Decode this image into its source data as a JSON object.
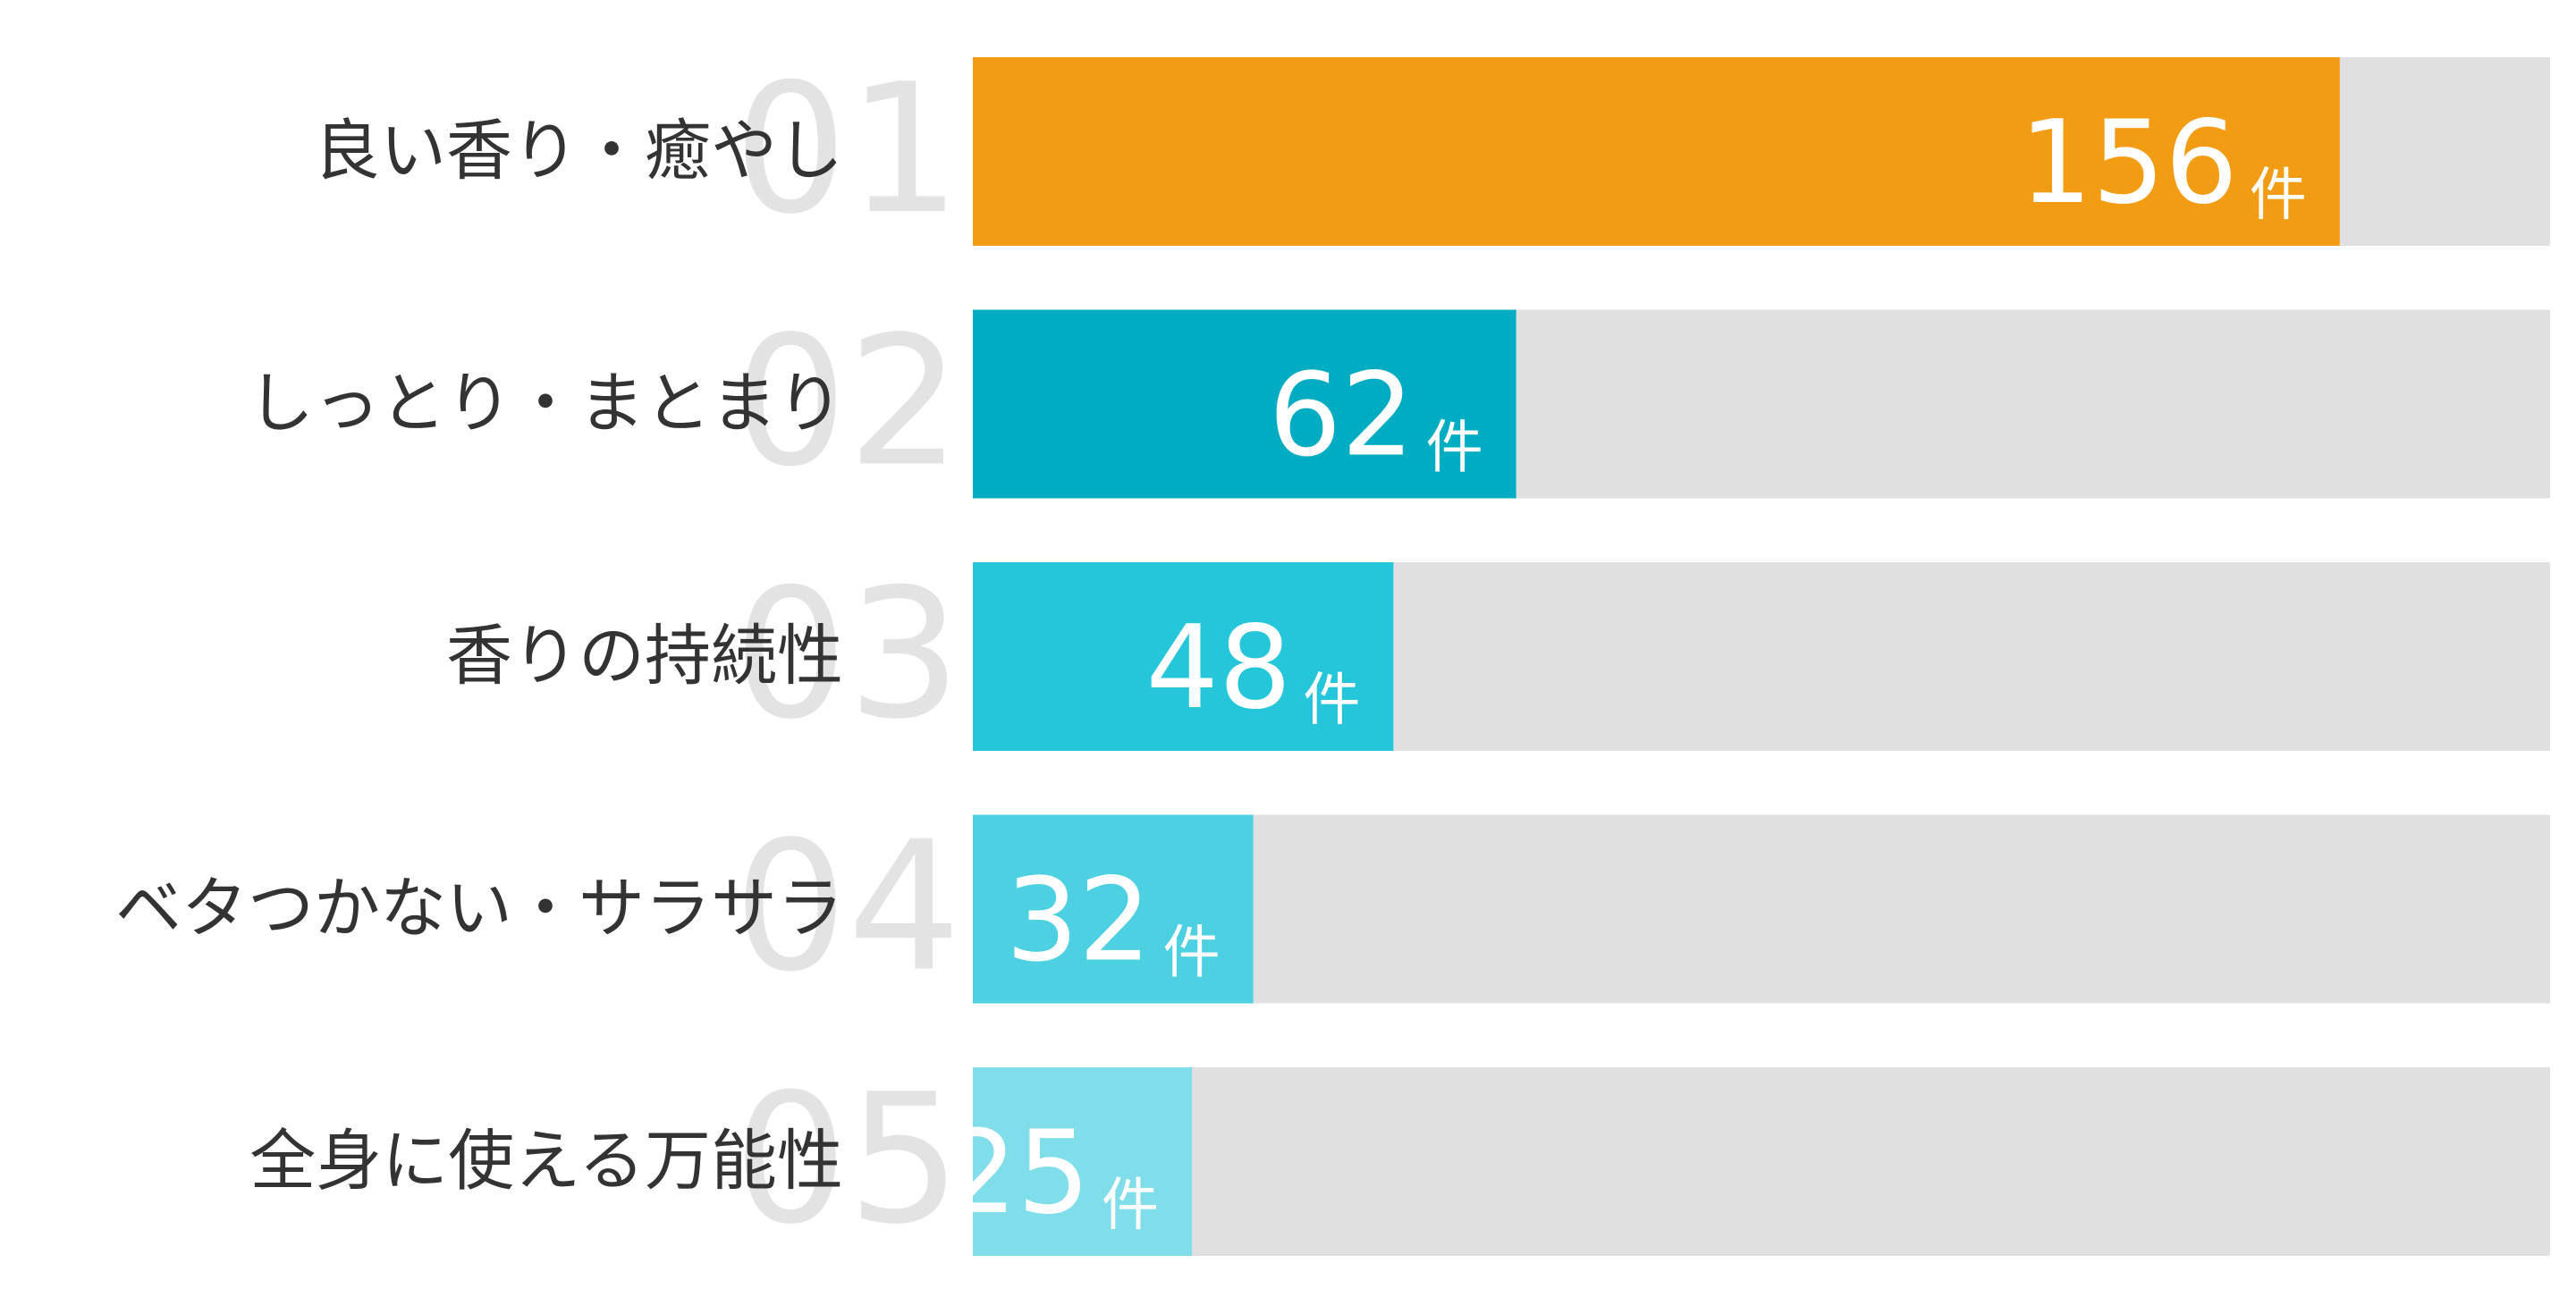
{
  "chart_data": {
    "type": "bar",
    "orientation": "horizontal",
    "ranks": [
      "01",
      "02",
      "03",
      "04",
      "05"
    ],
    "categories": [
      "良い香り・癒やし",
      "しっとり・まとまり",
      "香りの持続性",
      "ベタつかない・サラサラ",
      "全身に使える万能性"
    ],
    "values": [
      156,
      62,
      48,
      32,
      25
    ],
    "unit": "件",
    "colors": [
      "#f29c14",
      "#00acc1",
      "#26c6da",
      "#4dd0e1",
      "#80deea"
    ],
    "track_color": "#e0e0e0",
    "xlim": [
      0,
      180
    ]
  }
}
